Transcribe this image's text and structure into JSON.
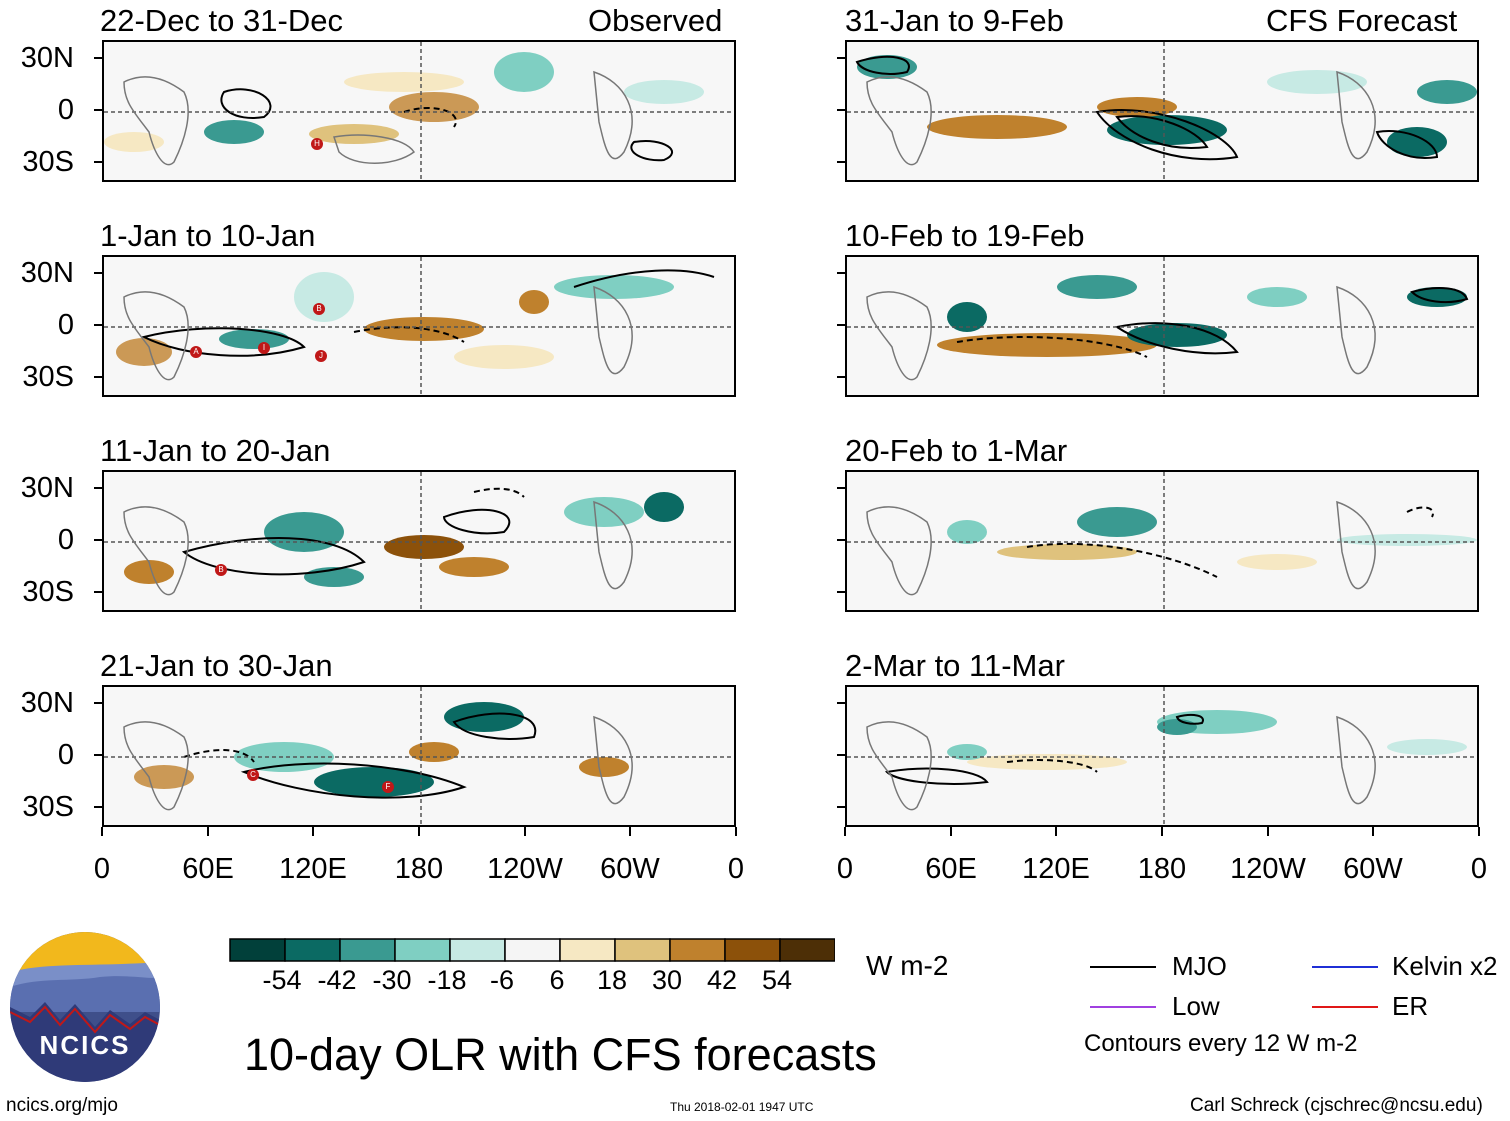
{
  "panels_left": [
    {
      "title": "22-Dec to 31-Dec",
      "tag": "Observed"
    },
    {
      "title": "1-Jan to 10-Jan",
      "tag": ""
    },
    {
      "title": "11-Jan to 20-Jan",
      "tag": ""
    },
    {
      "title": "21-Jan to 30-Jan",
      "tag": ""
    }
  ],
  "panels_right": [
    {
      "title": "31-Jan to 9-Feb",
      "tag": "CFS Forecast"
    },
    {
      "title": "10-Feb to 19-Feb",
      "tag": ""
    },
    {
      "title": "20-Feb to 1-Mar",
      "tag": ""
    },
    {
      "title": "2-Mar to 11-Mar",
      "tag": ""
    }
  ],
  "lat_labels": [
    "30N",
    "0",
    "30S"
  ],
  "lon_labels": [
    "0",
    "60E",
    "120E",
    "180",
    "120W",
    "60W",
    "0"
  ],
  "colorbar": {
    "labels": [
      "-54",
      "-42",
      "-30",
      "-18",
      "-6",
      "6",
      "18",
      "30",
      "42",
      "54"
    ],
    "colors": [
      "#01403a",
      "#0b6a63",
      "#3a9a91",
      "#7fcfc2",
      "#c7eae4",
      "#f5f5f5",
      "#f6e8c3",
      "#dfc27d",
      "#bf812d",
      "#8c510a",
      "#4d2f06"
    ],
    "units": "W m-2"
  },
  "legend": {
    "items": [
      {
        "label": "MJO",
        "color": "#000000"
      },
      {
        "label": "Kelvin x2",
        "color": "#1f2fd6"
      },
      {
        "label": "Low",
        "color": "#a040e0"
      },
      {
        "label": "ER",
        "color": "#e01818"
      }
    ],
    "note": "Contours every 12 W m-2"
  },
  "title": "10-day OLR with CFS forecasts",
  "logo_text": "NCICS",
  "footer": {
    "left": "ncics.org/mjo",
    "center": "Thu 2018-02-01 1947 UTC",
    "right": "Carl Schreck (cjschrec@ncsu.edu)"
  },
  "storm_markers": {
    "panel_0": [
      "H"
    ],
    "panel_1": [
      "A",
      "I",
      "B",
      "J"
    ],
    "panel_2": [
      "B"
    ],
    "panel_3": [
      "C",
      "F"
    ]
  }
}
